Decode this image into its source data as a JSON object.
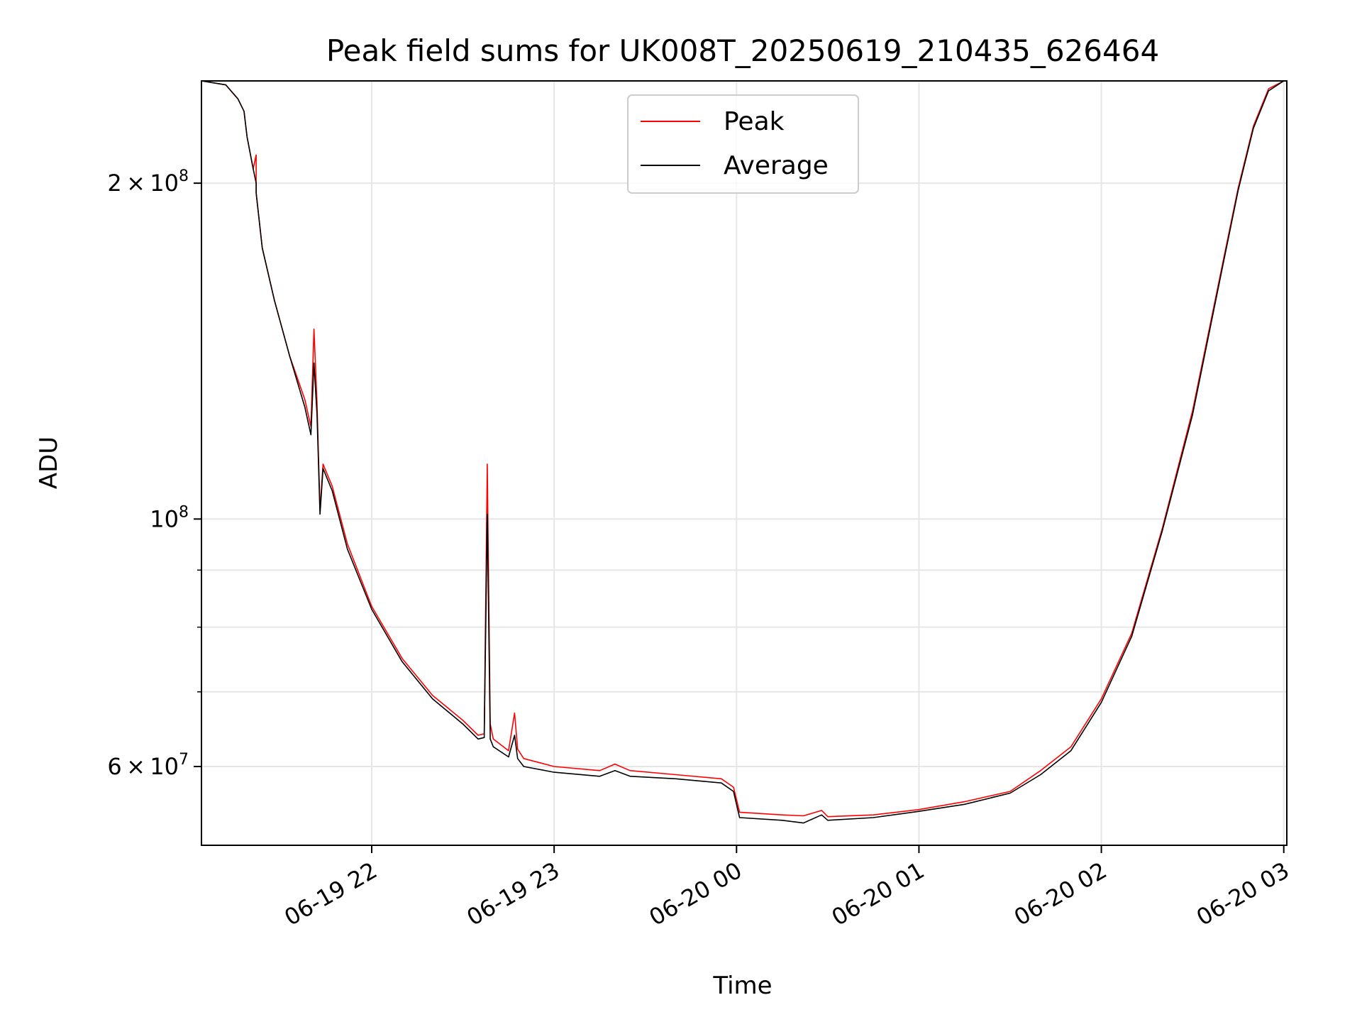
{
  "chart_data": {
    "type": "line",
    "title": "Peak field sums for UK008T_20250619_210435_626464",
    "xlabel": "Time",
    "ylabel": "ADU",
    "x_scale": "time",
    "y_scale": "log",
    "xlim": [
      "2025-06-19T21:04",
      "2025-06-20T03:01"
    ],
    "ylim": [
      51000000,
      247000000
    ],
    "grid": true,
    "legend_position": "upper center",
    "x_ticks": [
      {
        "t": "2025-06-19T22:00",
        "label": "06-19 22"
      },
      {
        "t": "2025-06-19T23:00",
        "label": "06-19 23"
      },
      {
        "t": "2025-06-20T00:00",
        "label": "06-20 00"
      },
      {
        "t": "2025-06-20T01:00",
        "label": "06-20 01"
      },
      {
        "t": "2025-06-20T02:00",
        "label": "06-20 02"
      },
      {
        "t": "2025-06-20T03:00",
        "label": "06-20 03"
      }
    ],
    "y_ticks": [
      {
        "v": 200000000,
        "mantissa": "2",
        "sup": "8"
      },
      {
        "v": 100000000,
        "mantissa": "",
        "sup": "8"
      },
      {
        "v": 60000000,
        "mantissa": "6",
        "sup": "7"
      }
    ],
    "y_minor_ticks": [
      70000000,
      80000000,
      90000000
    ],
    "series": [
      {
        "name": "Peak",
        "color": "#ff0000",
        "x": [
          "2025-06-19T21:04",
          "2025-06-19T21:12",
          "2025-06-19T21:16",
          "2025-06-19T21:18",
          "2025-06-19T21:19",
          "2025-06-19T21:21",
          "2025-06-19T21:22",
          "2025-06-19T21:22",
          "2025-06-19T21:24",
          "2025-06-19T21:28",
          "2025-06-19T21:33",
          "2025-06-19T21:38",
          "2025-06-19T21:40",
          "2025-06-19T21:41",
          "2025-06-19T21:42",
          "2025-06-19T21:43",
          "2025-06-19T21:44",
          "2025-06-19T21:47",
          "2025-06-19T21:52",
          "2025-06-19T22:00",
          "2025-06-19T22:10",
          "2025-06-19T22:20",
          "2025-06-19T22:30",
          "2025-06-19T22:35",
          "2025-06-19T22:37",
          "2025-06-19T22:38",
          "2025-06-19T22:39",
          "2025-06-19T22:40",
          "2025-06-19T22:45",
          "2025-06-19T22:47",
          "2025-06-19T22:48",
          "2025-06-19T22:50",
          "2025-06-19T23:00",
          "2025-06-19T23:15",
          "2025-06-19T23:20",
          "2025-06-19T23:25",
          "2025-06-19T23:40",
          "2025-06-19T23:55",
          "2025-06-19T23:59",
          "2025-06-20T00:01",
          "2025-06-20T00:15",
          "2025-06-20T00:22",
          "2025-06-20T00:28",
          "2025-06-20T00:30",
          "2025-06-20T00:45",
          "2025-06-20T01:00",
          "2025-06-20T01:15",
          "2025-06-20T01:30",
          "2025-06-20T01:40",
          "2025-06-20T01:50",
          "2025-06-20T02:00",
          "2025-06-20T02:10",
          "2025-06-20T02:20",
          "2025-06-20T02:30",
          "2025-06-20T02:40",
          "2025-06-20T02:45",
          "2025-06-20T02:50",
          "2025-06-20T02:55",
          "2025-06-20T03:00"
        ],
        "values": [
          247000000,
          245000000,
          238000000,
          232000000,
          220000000,
          206000000,
          212000000,
          196000000,
          175000000,
          157000000,
          140000000,
          128000000,
          121000000,
          148000000,
          127000000,
          102000000,
          112000000,
          107000000,
          95000000,
          83500000,
          75000000,
          69500000,
          66000000,
          64000000,
          64200000,
          112000000,
          65500000,
          63500000,
          62000000,
          67000000,
          62200000,
          61000000,
          60000000,
          59500000,
          60300000,
          59500000,
          59000000,
          58500000,
          57500000,
          54600000,
          54300000,
          54200000,
          54800000,
          54100000,
          54300000,
          54900000,
          55800000,
          57000000,
          59500000,
          62500000,
          69000000,
          79000000,
          98000000,
          125000000,
          170000000,
          198000000,
          225000000,
          243000000,
          247000000
        ]
      },
      {
        "name": "Average",
        "color": "#000000",
        "x": [
          "2025-06-19T21:04",
          "2025-06-19T21:12",
          "2025-06-19T21:16",
          "2025-06-19T21:18",
          "2025-06-19T21:19",
          "2025-06-19T21:21",
          "2025-06-19T21:22",
          "2025-06-19T21:22",
          "2025-06-19T21:24",
          "2025-06-19T21:28",
          "2025-06-19T21:33",
          "2025-06-19T21:38",
          "2025-06-19T21:40",
          "2025-06-19T21:41",
          "2025-06-19T21:42",
          "2025-06-19T21:43",
          "2025-06-19T21:44",
          "2025-06-19T21:47",
          "2025-06-19T21:52",
          "2025-06-19T22:00",
          "2025-06-19T22:10",
          "2025-06-19T22:20",
          "2025-06-19T22:30",
          "2025-06-19T22:35",
          "2025-06-19T22:37",
          "2025-06-19T22:38",
          "2025-06-19T22:39",
          "2025-06-19T22:40",
          "2025-06-19T22:45",
          "2025-06-19T22:47",
          "2025-06-19T22:48",
          "2025-06-19T22:50",
          "2025-06-19T23:00",
          "2025-06-19T23:15",
          "2025-06-19T23:20",
          "2025-06-19T23:25",
          "2025-06-19T23:40",
          "2025-06-19T23:55",
          "2025-06-19T23:59",
          "2025-06-20T00:01",
          "2025-06-20T00:15",
          "2025-06-20T00:22",
          "2025-06-20T00:28",
          "2025-06-20T00:30",
          "2025-06-20T00:45",
          "2025-06-20T01:00",
          "2025-06-20T01:15",
          "2025-06-20T01:30",
          "2025-06-20T01:40",
          "2025-06-20T01:50",
          "2025-06-20T02:00",
          "2025-06-20T02:10",
          "2025-06-20T02:20",
          "2025-06-20T02:30",
          "2025-06-20T02:40",
          "2025-06-20T02:45",
          "2025-06-20T02:50",
          "2025-06-20T02:55",
          "2025-06-20T03:00"
        ],
        "values": [
          247000000,
          245000000,
          238000000,
          232000000,
          220000000,
          206000000,
          200000000,
          196000000,
          175000000,
          157000000,
          140000000,
          126000000,
          119000000,
          138000000,
          124000000,
          101000000,
          111000000,
          106000000,
          94000000,
          83000000,
          74500000,
          69000000,
          65500000,
          63500000,
          63700000,
          101000000,
          63500000,
          62500000,
          61200000,
          64000000,
          61000000,
          60000000,
          59300000,
          58800000,
          59500000,
          58800000,
          58500000,
          58000000,
          57000000,
          54000000,
          53700000,
          53400000,
          54300000,
          53700000,
          54000000,
          54700000,
          55500000,
          56800000,
          59000000,
          62000000,
          68500000,
          78500000,
          97500000,
          124000000,
          169000000,
          197000000,
          224000000,
          242000000,
          247000000
        ]
      }
    ]
  }
}
